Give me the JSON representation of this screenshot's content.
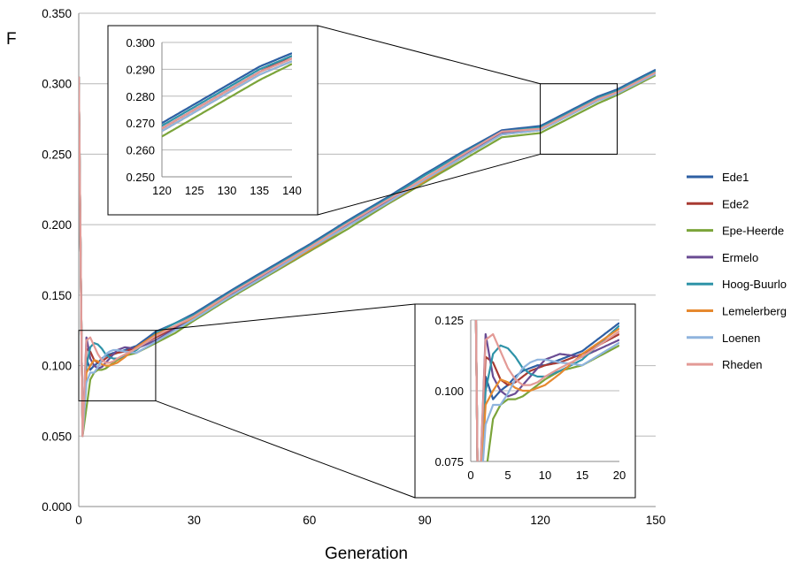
{
  "chart_data": {
    "type": "line",
    "title": "",
    "xlabel": "Generation",
    "ylabel": "F",
    "xlim": [
      0,
      150
    ],
    "ylim": [
      0,
      0.35
    ],
    "x_ticks": [
      "0",
      "30",
      "60",
      "90",
      "120",
      "150"
    ],
    "y_ticks": [
      "0.000",
      "0.050",
      "0.100",
      "0.150",
      "0.200",
      "0.250",
      "0.300",
      "0.350"
    ],
    "grid": "horizontal",
    "legend_position": "right",
    "series": [
      {
        "name": "Ede1",
        "color": "#2E5FA3",
        "x": [
          0,
          1,
          2,
          3,
          4,
          5,
          6,
          7,
          8,
          9,
          10,
          12,
          15,
          20,
          25,
          30,
          40,
          50,
          60,
          70,
          80,
          90,
          100,
          110,
          120,
          125,
          130,
          135,
          140,
          150
        ],
        "values": [
          0.305,
          0.05,
          0.105,
          0.097,
          0.1,
          0.102,
          0.105,
          0.107,
          0.108,
          0.109,
          0.109,
          0.111,
          0.114,
          0.124,
          0.13,
          0.137,
          0.154,
          0.17,
          0.186,
          0.203,
          0.219,
          0.236,
          0.252,
          0.267,
          0.27,
          0.277,
          0.284,
          0.291,
          0.296,
          0.31
        ]
      },
      {
        "name": "Ede2",
        "color": "#A83A32",
        "x": [
          0,
          1,
          2,
          3,
          4,
          5,
          6,
          7,
          8,
          9,
          10,
          12,
          15,
          20,
          25,
          30,
          40,
          50,
          60,
          70,
          80,
          90,
          100,
          110,
          120,
          125,
          130,
          135,
          140,
          150
        ],
        "values": [
          0.305,
          0.05,
          0.112,
          0.11,
          0.104,
          0.102,
          0.103,
          0.105,
          0.107,
          0.108,
          0.109,
          0.11,
          0.113,
          0.12,
          0.127,
          0.135,
          0.151,
          0.168,
          0.184,
          0.2,
          0.217,
          0.233,
          0.249,
          0.265,
          0.268,
          0.275,
          0.282,
          0.289,
          0.295,
          0.308
        ]
      },
      {
        "name": "Epe-Heerde",
        "color": "#7BA43A",
        "x": [
          0,
          1,
          2,
          3,
          4,
          5,
          6,
          7,
          8,
          9,
          10,
          12,
          15,
          20,
          25,
          30,
          40,
          50,
          60,
          70,
          80,
          90,
          100,
          110,
          120,
          125,
          130,
          135,
          140,
          150
        ],
        "values": [
          0.305,
          0.05,
          0.07,
          0.09,
          0.095,
          0.097,
          0.097,
          0.098,
          0.1,
          0.102,
          0.104,
          0.107,
          0.109,
          0.116,
          0.123,
          0.132,
          0.149,
          0.165,
          0.181,
          0.197,
          0.214,
          0.23,
          0.246,
          0.262,
          0.265,
          0.272,
          0.279,
          0.286,
          0.292,
          0.306
        ]
      },
      {
        "name": "Ermelo",
        "color": "#6A4C93",
        "x": [
          0,
          1,
          2,
          3,
          4,
          5,
          6,
          7,
          8,
          9,
          10,
          12,
          15,
          20,
          25,
          30,
          40,
          50,
          60,
          70,
          80,
          90,
          100,
          110,
          120,
          125,
          130,
          135,
          140,
          150
        ],
        "values": [
          0.305,
          0.05,
          0.12,
          0.105,
          0.1,
          0.098,
          0.099,
          0.102,
          0.105,
          0.108,
          0.111,
          0.113,
          0.112,
          0.118,
          0.126,
          0.134,
          0.151,
          0.167,
          0.184,
          0.2,
          0.216,
          0.232,
          0.249,
          0.265,
          0.268,
          0.275,
          0.282,
          0.289,
          0.294,
          0.308
        ]
      },
      {
        "name": "Hoog-Buurlo",
        "color": "#2E93A8",
        "x": [
          0,
          1,
          2,
          3,
          4,
          5,
          6,
          7,
          8,
          9,
          10,
          12,
          15,
          20,
          25,
          30,
          40,
          50,
          60,
          70,
          80,
          90,
          100,
          110,
          120,
          125,
          130,
          135,
          140,
          150
        ],
        "values": [
          0.305,
          0.05,
          0.1,
          0.113,
          0.116,
          0.115,
          0.112,
          0.108,
          0.106,
          0.105,
          0.105,
          0.107,
          0.111,
          0.123,
          0.13,
          0.136,
          0.153,
          0.169,
          0.185,
          0.202,
          0.218,
          0.235,
          0.251,
          0.266,
          0.269,
          0.276,
          0.283,
          0.29,
          0.295,
          0.309
        ]
      },
      {
        "name": "Lemelerberg",
        "color": "#E6892F",
        "x": [
          0,
          1,
          2,
          3,
          4,
          5,
          6,
          7,
          8,
          9,
          10,
          12,
          15,
          20,
          25,
          30,
          40,
          50,
          60,
          70,
          80,
          90,
          100,
          110,
          120,
          125,
          130,
          135,
          140,
          150
        ],
        "values": [
          0.305,
          0.05,
          0.095,
          0.1,
          0.104,
          0.103,
          0.101,
          0.1,
          0.1,
          0.101,
          0.102,
          0.106,
          0.113,
          0.122,
          0.128,
          0.134,
          0.15,
          0.166,
          0.182,
          0.199,
          0.215,
          0.231,
          0.248,
          0.264,
          0.267,
          0.274,
          0.281,
          0.288,
          0.293,
          0.307
        ]
      },
      {
        "name": "Loenen",
        "color": "#8FB4DE",
        "x": [
          0,
          1,
          2,
          3,
          4,
          5,
          6,
          7,
          8,
          9,
          10,
          12,
          15,
          20,
          25,
          30,
          40,
          50,
          60,
          70,
          80,
          90,
          100,
          110,
          120,
          125,
          130,
          135,
          140,
          150
        ],
        "values": [
          0.305,
          0.05,
          0.088,
          0.095,
          0.095,
          0.099,
          0.104,
          0.108,
          0.11,
          0.111,
          0.111,
          0.11,
          0.109,
          0.117,
          0.125,
          0.133,
          0.15,
          0.166,
          0.183,
          0.199,
          0.215,
          0.232,
          0.248,
          0.264,
          0.267,
          0.274,
          0.281,
          0.288,
          0.293,
          0.307
        ]
      },
      {
        "name": "Rheden",
        "color": "#E39A96",
        "x": [
          0,
          1,
          2,
          3,
          4,
          5,
          6,
          7,
          8,
          9,
          10,
          12,
          15,
          20,
          25,
          30,
          40,
          50,
          60,
          70,
          80,
          90,
          100,
          110,
          120,
          125,
          130,
          135,
          140,
          150
        ],
        "values": [
          0.305,
          0.05,
          0.118,
          0.12,
          0.114,
          0.108,
          0.104,
          0.102,
          0.102,
          0.103,
          0.105,
          0.108,
          0.112,
          0.121,
          0.128,
          0.135,
          0.152,
          0.168,
          0.184,
          0.201,
          0.217,
          0.233,
          0.25,
          0.266,
          0.268,
          0.275,
          0.282,
          0.289,
          0.294,
          0.308
        ]
      }
    ],
    "insets": [
      {
        "name": "inset-top",
        "xlim": [
          120,
          140
        ],
        "ylim": [
          0.25,
          0.3
        ],
        "x_ticks": [
          "120",
          "125",
          "130",
          "135",
          "140"
        ],
        "y_ticks": [
          "0.250",
          "0.260",
          "0.270",
          "0.280",
          "0.290",
          "0.300"
        ]
      },
      {
        "name": "inset-bottom",
        "xlim": [
          0,
          20
        ],
        "ylim": [
          0.075,
          0.125
        ],
        "x_ticks": [
          "0",
          "5",
          "10",
          "15",
          "20"
        ],
        "y_ticks": [
          "0.075",
          "0.100",
          "0.125"
        ]
      }
    ]
  }
}
